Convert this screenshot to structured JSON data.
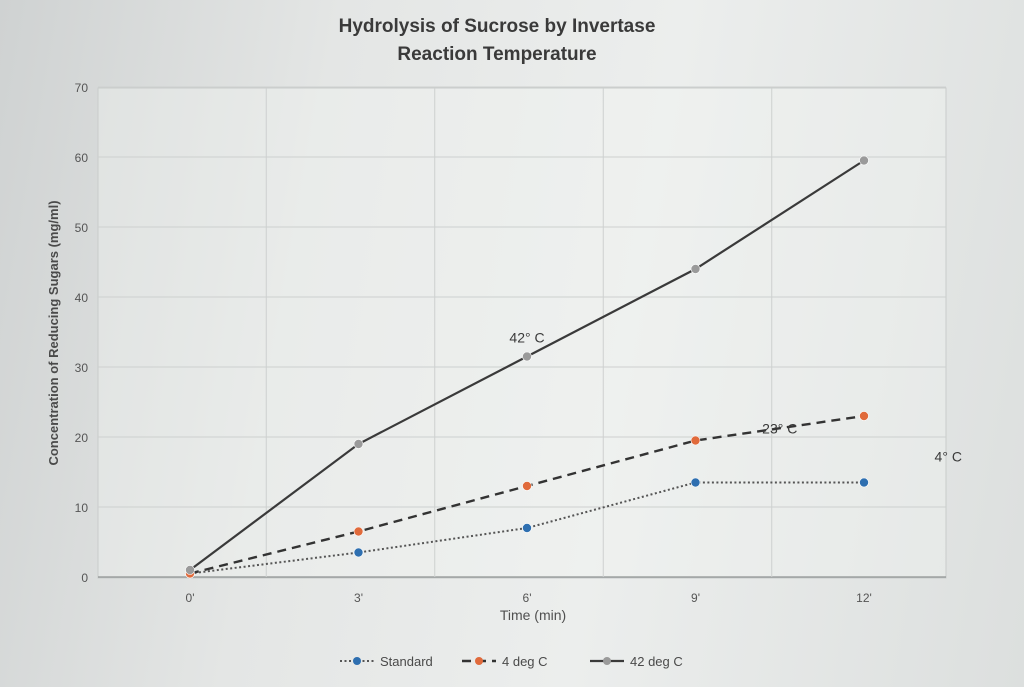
{
  "chart_data": {
    "type": "line",
    "title": "Hydrolysis of Sucrose by Invertase",
    "subtitle": "Reaction Temperature",
    "xlabel": "Time (min)",
    "ylabel": "Concentration of Reducing Sugars (mg/ml)",
    "categories": [
      "0'",
      "3'",
      "6'",
      "9'",
      "12'"
    ],
    "ylim": [
      0,
      70
    ],
    "yticks": [
      0,
      10,
      20,
      30,
      40,
      50,
      60,
      70
    ],
    "grid": true,
    "legend": "bottom",
    "series": [
      {
        "name": "Standard",
        "values": [
          0.5,
          3.5,
          7,
          13.5,
          13.5
        ],
        "color": "#2e6fb0",
        "style": "dotted"
      },
      {
        "name": "4 deg C",
        "values": [
          0.5,
          6.5,
          13,
          19.5,
          23
        ],
        "color": "#e06a3b",
        "style": "dashed"
      },
      {
        "name": "42 deg C",
        "values": [
          1,
          19,
          31.5,
          44,
          59.5
        ],
        "color": "#9a9a9a",
        "style": "solid"
      }
    ],
    "annotations": [
      {
        "text": "42° C",
        "x": 2,
        "y": 33.5
      },
      {
        "text": "23° C",
        "x": 3.5,
        "y": 20.5
      },
      {
        "text": "4° C",
        "x": 4.5,
        "y": 16.5
      }
    ]
  }
}
